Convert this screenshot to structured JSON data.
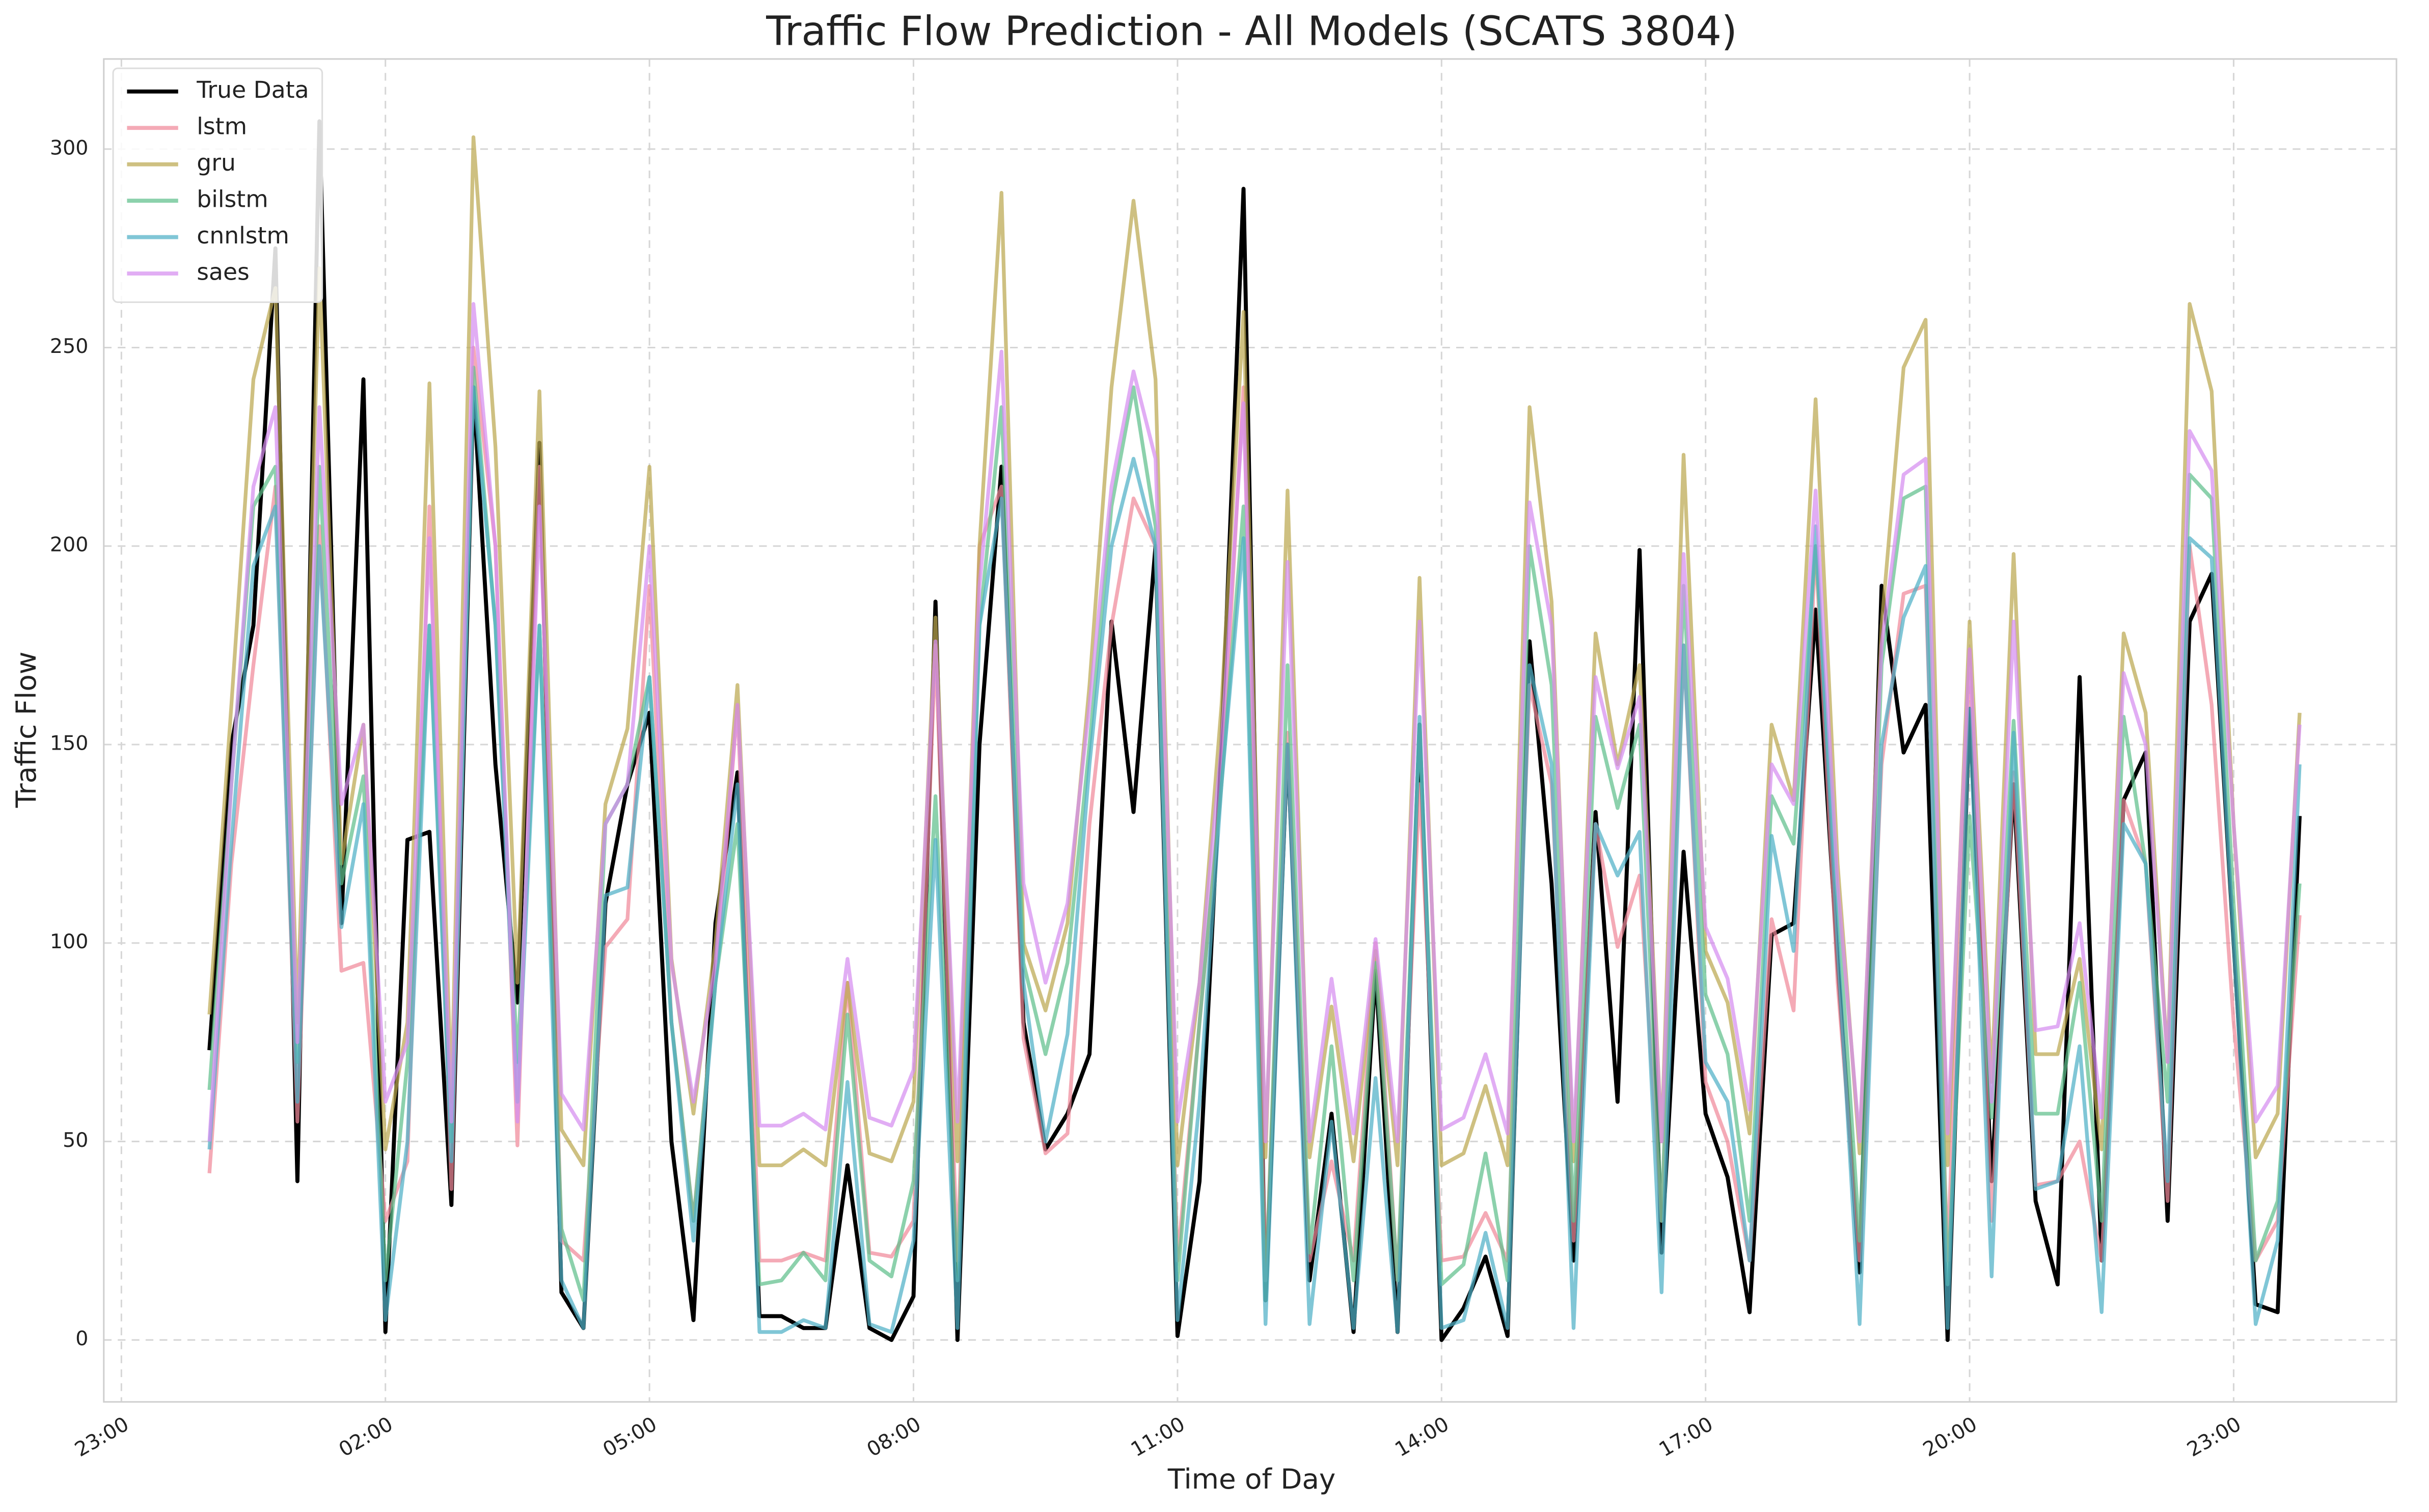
{
  "chart_data": {
    "type": "line",
    "title": "Traffic Flow Prediction - All Models (SCATS 3804)",
    "xlabel": "Time of Day",
    "ylabel": "Traffic Flow",
    "x": [
      0,
      15,
      30,
      45,
      60,
      75,
      90,
      105,
      120,
      135,
      150,
      165,
      180,
      195,
      210,
      225,
      240,
      255,
      270,
      285,
      300,
      315,
      330,
      345,
      360,
      375,
      390,
      405,
      420,
      435,
      450,
      465,
      480,
      495,
      510,
      525,
      540,
      555,
      570,
      585,
      600,
      615,
      630,
      645,
      660,
      675,
      690,
      705,
      720,
      735,
      750,
      765,
      780,
      795,
      810,
      825,
      840,
      855,
      870,
      885,
      900,
      915,
      930,
      945,
      960,
      975,
      990,
      1005,
      1020,
      1035,
      1050,
      1065,
      1080,
      1095,
      1110,
      1125,
      1140,
      1155,
      1170,
      1185,
      1200,
      1215,
      1230,
      1245,
      1260,
      1275,
      1290,
      1305,
      1320,
      1335,
      1350,
      1365,
      1380,
      1395,
      1410,
      1425
    ],
    "xlim": [
      -72,
      1491
    ],
    "xticks": [
      {
        "value": -60,
        "label": "23:00"
      },
      {
        "value": 120,
        "label": "02:00"
      },
      {
        "value": 300,
        "label": "05:00"
      },
      {
        "value": 480,
        "label": "08:00"
      },
      {
        "value": 660,
        "label": "11:00"
      },
      {
        "value": 840,
        "label": "14:00"
      },
      {
        "value": 1020,
        "label": "17:00"
      },
      {
        "value": 1200,
        "label": "20:00"
      },
      {
        "value": 1380,
        "label": "23:00"
      }
    ],
    "ylim": [
      -15.6,
      322.7
    ],
    "yticks": [
      0,
      50,
      100,
      150,
      200,
      250,
      300
    ],
    "grid": true,
    "legend": "upper left",
    "series": [
      {
        "name": "True Data",
        "color": "#000000",
        "values": [
          73,
          150,
          180,
          275,
          40,
          307,
          105,
          242,
          2,
          126,
          128,
          34,
          240,
          145,
          85,
          226,
          12,
          3,
          110,
          140,
          158,
          50,
          5,
          105,
          143,
          6,
          6,
          3,
          3,
          44,
          3,
          0,
          11,
          186,
          0,
          150,
          220,
          80,
          48,
          57,
          72,
          181,
          133,
          200,
          1,
          40,
          150,
          290,
          10,
          150,
          15,
          57,
          2,
          93,
          2,
          155,
          0,
          8,
          21,
          1,
          176,
          115,
          20,
          133,
          60,
          199,
          22,
          123,
          57,
          41,
          7,
          102,
          105,
          184,
          95,
          17,
          190,
          148,
          160,
          0,
          159,
          40,
          140,
          35,
          14,
          167,
          20,
          136,
          148,
          30,
          181,
          193,
          100,
          9,
          7,
          132
        ]
      },
      {
        "name": "lstm",
        "color": "#f0899a",
        "values": [
          42,
          120,
          170,
          215,
          55,
          205,
          93,
          95,
          30,
          45,
          210,
          38,
          250,
          200,
          49,
          220,
          25,
          20,
          99,
          106,
          190,
          80,
          30,
          90,
          160,
          20,
          20,
          22,
          20,
          90,
          22,
          21,
          30,
          175,
          20,
          200,
          215,
          76,
          47,
          52,
          130,
          180,
          212,
          200,
          20,
          80,
          140,
          240,
          15,
          153,
          20,
          45,
          20,
          100,
          15,
          140,
          20,
          21,
          32,
          20,
          165,
          140,
          25,
          130,
          99,
          117,
          30,
          175,
          65,
          50,
          20,
          106,
          83,
          200,
          90,
          20,
          145,
          188,
          190,
          20,
          174,
          30,
          143,
          39,
          40,
          50,
          20,
          136,
          120,
          35,
          200,
          160,
          80,
          20,
          30,
          107
        ]
      },
      {
        "name": "gru",
        "color": "#bba750",
        "values": [
          82,
          160,
          242,
          265,
          80,
          270,
          120,
          155,
          48,
          80,
          241,
          60,
          303,
          225,
          90,
          239,
          53,
          44,
          135,
          154,
          220,
          96,
          57,
          100,
          165,
          44,
          44,
          48,
          44,
          90,
          47,
          45,
          60,
          182,
          45,
          200,
          289,
          100,
          83,
          105,
          165,
          240,
          287,
          242,
          44,
          90,
          160,
          259,
          46,
          214,
          46,
          84,
          45,
          98,
          44,
          192,
          44,
          47,
          64,
          44,
          235,
          186,
          45,
          178,
          145,
          170,
          50,
          223,
          98,
          85,
          52,
          155,
          136,
          237,
          120,
          47,
          180,
          245,
          257,
          44,
          181,
          65,
          198,
          72,
          72,
          96,
          48,
          178,
          158,
          70,
          261,
          239,
          130,
          46,
          57,
          158
        ]
      },
      {
        "name": "bilstm",
        "color": "#5fbf8c",
        "values": [
          63,
          140,
          210,
          220,
          70,
          220,
          115,
          142,
          15,
          70,
          180,
          50,
          245,
          180,
          70,
          180,
          28,
          10,
          130,
          140,
          167,
          80,
          30,
          90,
          130,
          14,
          15,
          22,
          15,
          82,
          20,
          16,
          40,
          137,
          15,
          180,
          235,
          95,
          72,
          95,
          150,
          210,
          240,
          205,
          15,
          80,
          140,
          210,
          10,
          170,
          22,
          74,
          15,
          95,
          15,
          155,
          14,
          19,
          47,
          15,
          200,
          165,
          30,
          157,
          134,
          155,
          30,
          190,
          87,
          72,
          30,
          137,
          125,
          200,
          110,
          25,
          170,
          212,
          215,
          14,
          132,
          56,
          156,
          57,
          57,
          90,
          30,
          157,
          120,
          60,
          218,
          212,
          110,
          20,
          35,
          115
        ]
      },
      {
        "name": "cnnlstm",
        "color": "#4fb0c6",
        "values": [
          48,
          125,
          195,
          210,
          60,
          200,
          104,
          135,
          5,
          50,
          180,
          45,
          240,
          180,
          60,
          180,
          15,
          3,
          112,
          114,
          167,
          80,
          25,
          90,
          140,
          2,
          2,
          5,
          3,
          65,
          4,
          2,
          25,
          126,
          3,
          180,
          212,
          90,
          50,
          77,
          145,
          200,
          222,
          200,
          5,
          60,
          140,
          202,
          4,
          150,
          4,
          55,
          3,
          66,
          2,
          157,
          3,
          5,
          27,
          3,
          170,
          145,
          3,
          130,
          117,
          128,
          12,
          175,
          70,
          60,
          20,
          127,
          98,
          205,
          100,
          4,
          150,
          182,
          195,
          3,
          159,
          16,
          153,
          38,
          40,
          74,
          7,
          130,
          120,
          40,
          202,
          197,
          100,
          4,
          25,
          145
        ]
      },
      {
        "name": "saes",
        "color": "#d58ef0",
        "values": [
          50,
          140,
          215,
          235,
          75,
          235,
          135,
          155,
          60,
          75,
          202,
          55,
          261,
          200,
          55,
          210,
          62,
          53,
          130,
          140,
          200,
          95,
          60,
          95,
          160,
          54,
          54,
          57,
          53,
          96,
          56,
          54,
          68,
          176,
          55,
          190,
          249,
          115,
          90,
          110,
          160,
          215,
          244,
          222,
          55,
          90,
          150,
          236,
          50,
          196,
          50,
          91,
          52,
          101,
          50,
          181,
          53,
          56,
          72,
          52,
          211,
          180,
          50,
          167,
          144,
          162,
          50,
          198,
          104,
          91,
          58,
          145,
          135,
          214,
          115,
          50,
          175,
          218,
          222,
          52,
          174,
          60,
          181,
          78,
          79,
          105,
          56,
          168,
          150,
          70,
          229,
          219,
          130,
          55,
          64,
          155
        ]
      }
    ]
  }
}
